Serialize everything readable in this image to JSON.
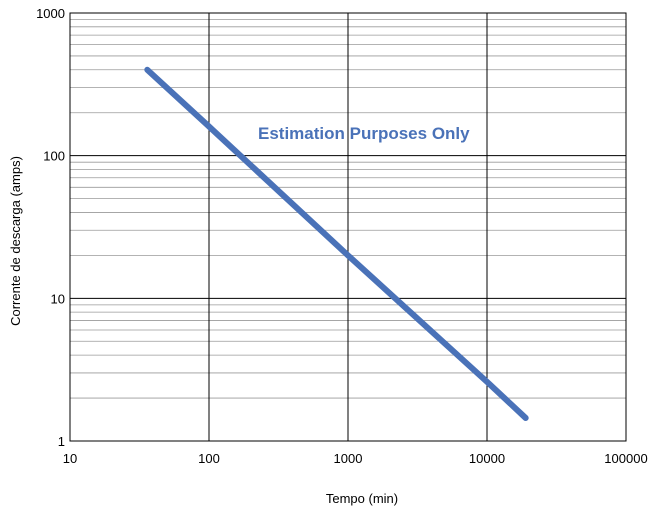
{
  "chart_data": {
    "type": "line",
    "xscale": "log",
    "yscale": "log",
    "xlim": [
      10,
      100000
    ],
    "ylim": [
      1,
      1000
    ],
    "xlabel": "Tempo (min)",
    "ylabel": "Corrente de descarga (amps)",
    "x_ticks": [
      "10",
      "100",
      "1000",
      "10000",
      "100000"
    ],
    "y_ticks": [
      "1",
      "10",
      "100",
      "1000"
    ],
    "annotation": "Estimation Purposes Only",
    "grid": true,
    "legend": "none",
    "series": [
      {
        "color": "#4a72b8",
        "x": [
          36,
          100,
          1000,
          10000,
          19000
        ],
        "y": [
          400,
          160,
          20,
          2.6,
          1.45
        ]
      }
    ]
  }
}
